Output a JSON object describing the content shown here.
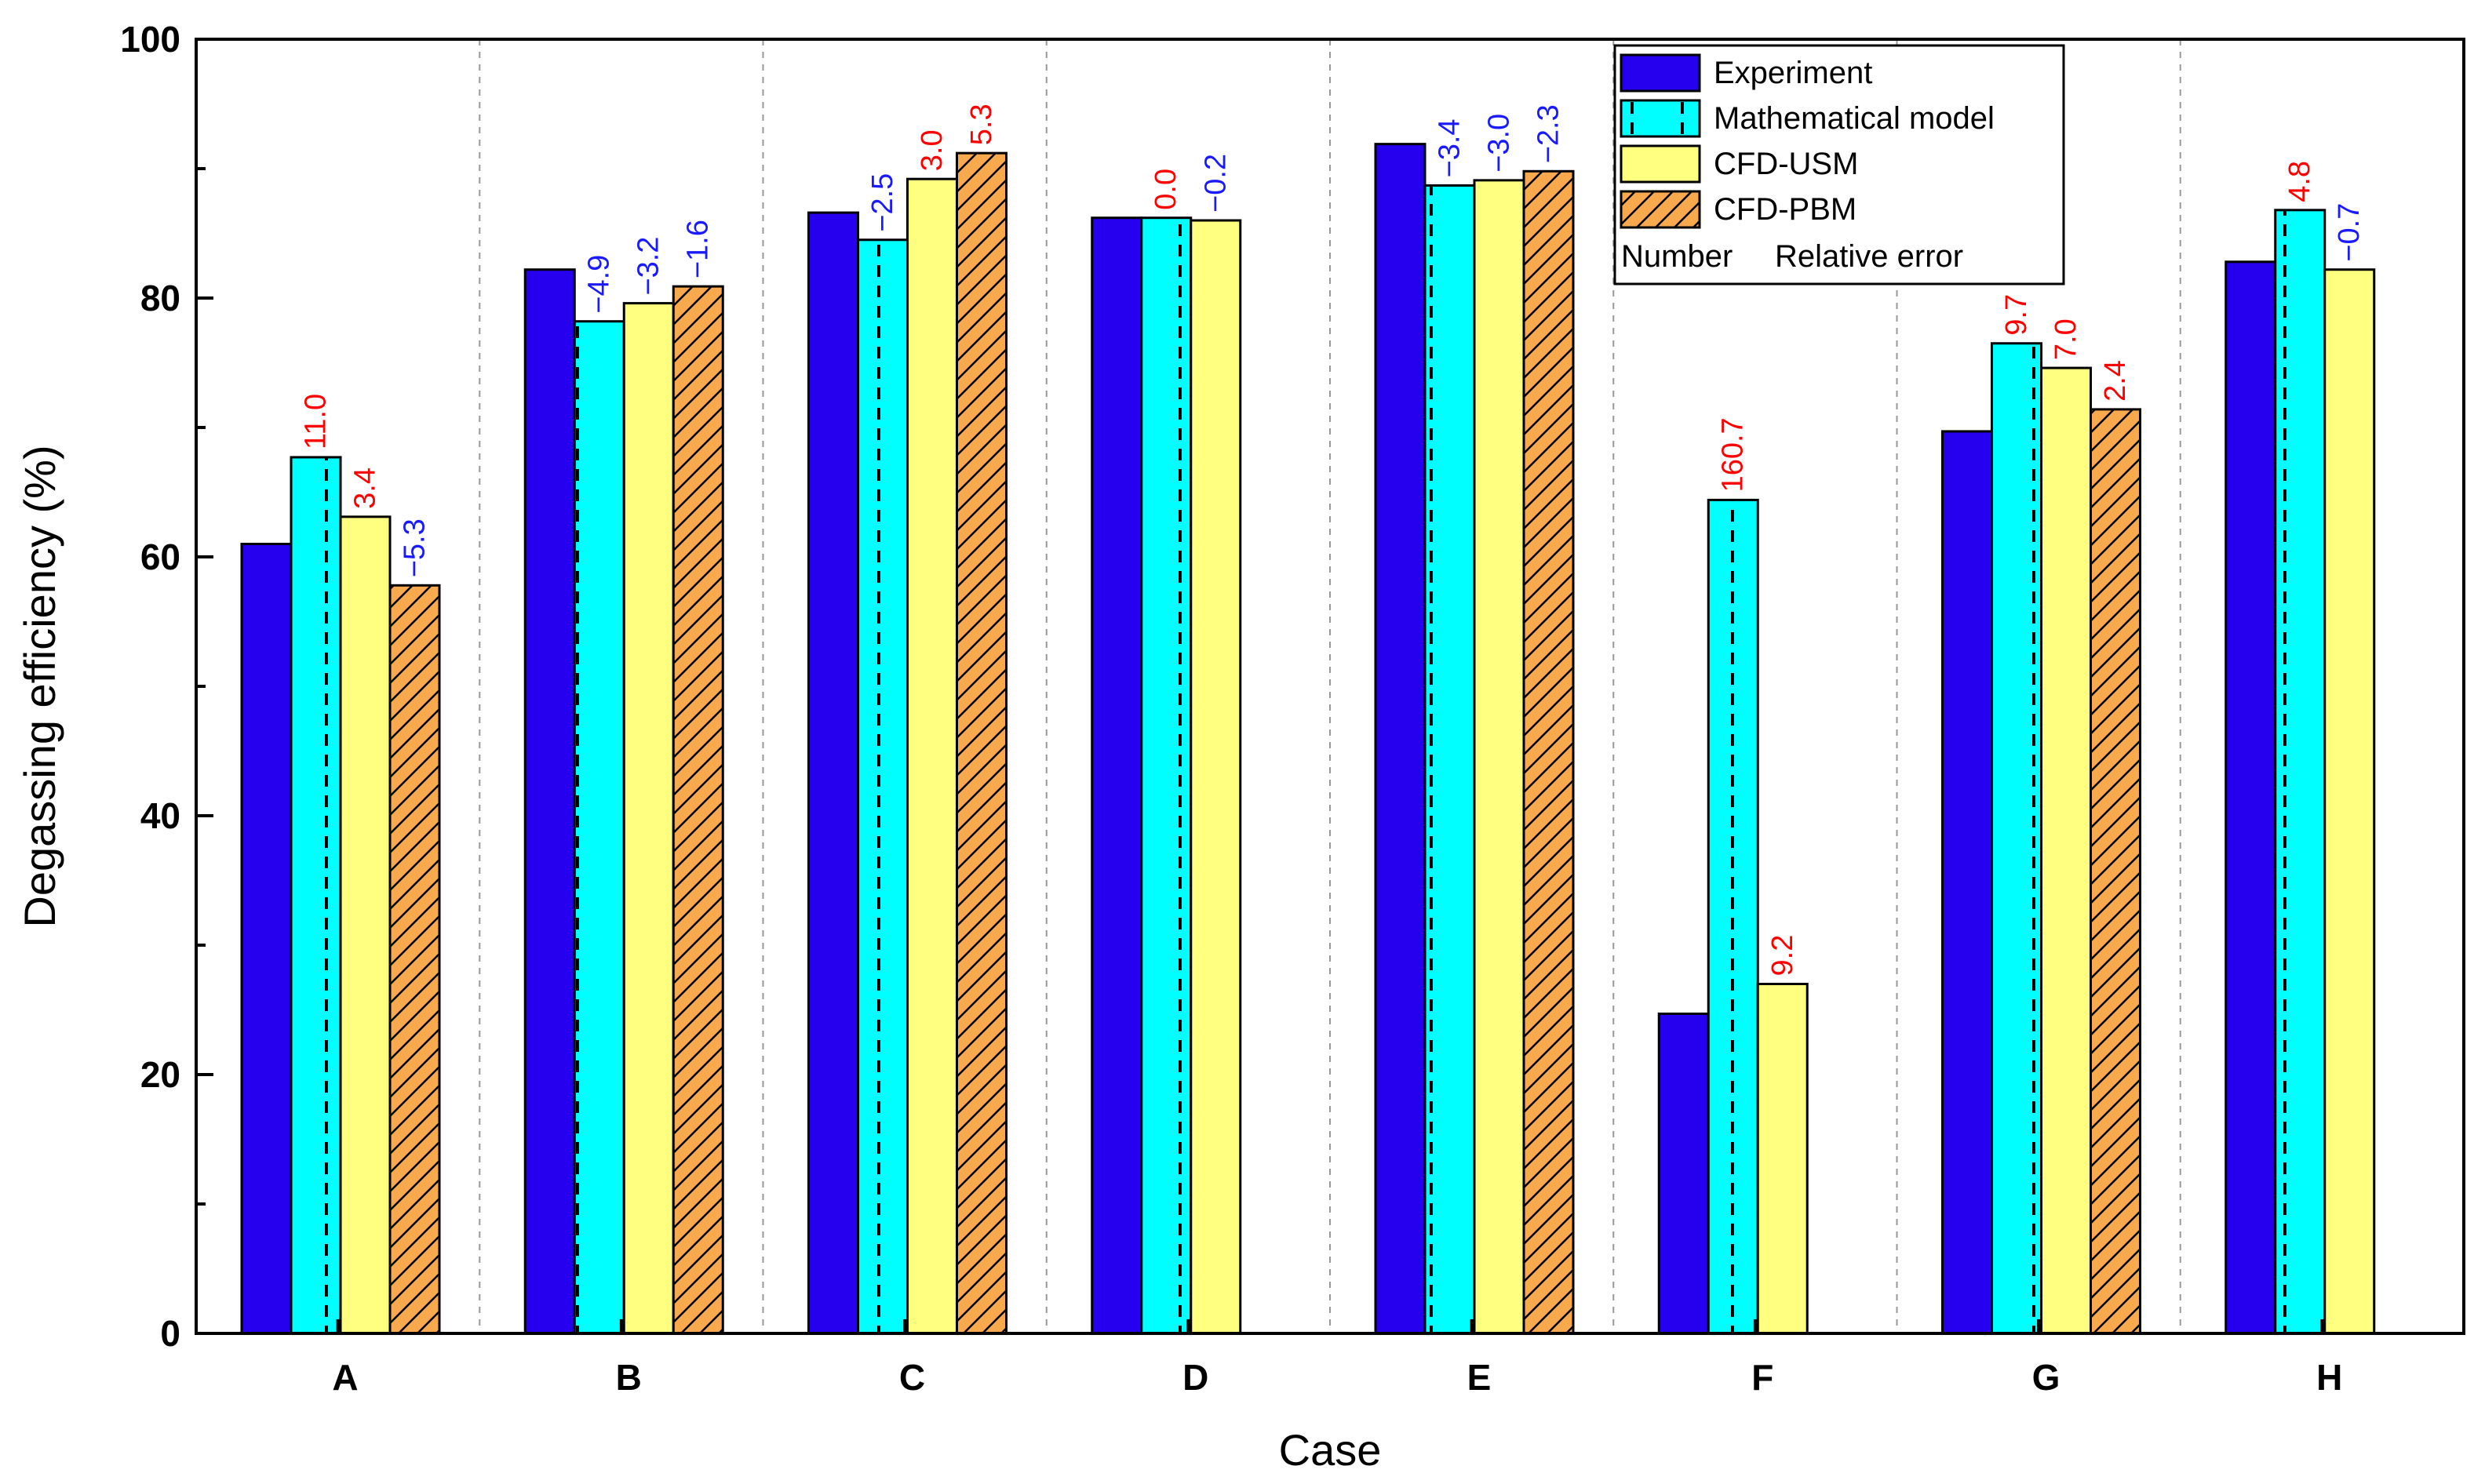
{
  "chart_data": {
    "type": "bar",
    "xlabel": "Case",
    "ylabel": "Degassing efficiency (%)",
    "ylim": [
      0,
      100
    ],
    "yticks": [
      "0",
      "20",
      "40",
      "60",
      "80",
      "100"
    ],
    "grid": "vertical dashed separators between cases",
    "categories": [
      "A",
      "B",
      "C",
      "D",
      "E",
      "F",
      "G",
      "H"
    ],
    "series": [
      {
        "name": "Experiment",
        "key": "experiment",
        "fill": "#2600ee",
        "pattern": "solid",
        "values": [
          61.0,
          82.2,
          86.6,
          86.2,
          91.9,
          24.7,
          69.7,
          82.8
        ],
        "errors": [
          null,
          null,
          null,
          null,
          null,
          null,
          null,
          null
        ]
      },
      {
        "name": "Mathematical model",
        "key": "math",
        "fill": "#00ffff",
        "pattern": "dashed-vertical",
        "values": [
          67.7,
          78.2,
          84.5,
          86.2,
          88.7,
          64.4,
          76.5,
          86.8
        ],
        "errors": [
          "11.0",
          "-4.9",
          "-2.5",
          "0.0",
          "-3.4",
          "160.7",
          "9.7",
          "4.8"
        ]
      },
      {
        "name": "CFD-USM",
        "key": "usm",
        "fill": "#ffff80",
        "pattern": "solid",
        "values": [
          63.1,
          79.6,
          89.2,
          86.0,
          89.1,
          27.0,
          74.6,
          82.2
        ],
        "errors": [
          "3.4",
          "-3.2",
          "3.0",
          "-0.2",
          "-3.0",
          "9.2",
          "7.0",
          "-0.7"
        ]
      },
      {
        "name": "CFD-PBM",
        "key": "pbm",
        "fill": "#f9a94d",
        "pattern": "diagonal-hatch",
        "values": [
          57.8,
          80.9,
          91.2,
          null,
          89.8,
          null,
          71.4,
          null
        ],
        "errors": [
          "-5.3",
          "-1.6",
          "5.3",
          null,
          "-2.3",
          null,
          "2.4",
          null
        ]
      }
    ],
    "legend": {
      "position": "top-right",
      "entries": [
        "Experiment",
        "Mathematical model",
        "CFD-USM",
        "CFD-PBM"
      ],
      "note_number": "Number",
      "note_text": "Relative error"
    },
    "colors": {
      "positive_error": "#ff0000",
      "negative_error": "#1a1aff"
    }
  }
}
